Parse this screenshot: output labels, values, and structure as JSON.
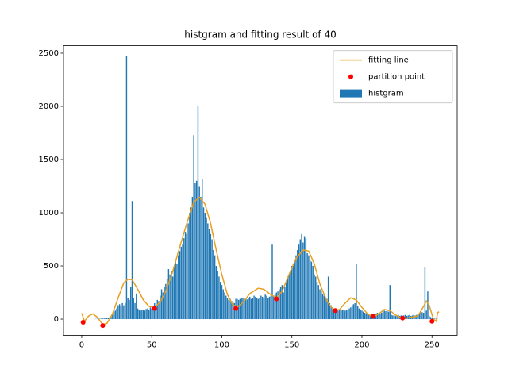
{
  "chart_data": {
    "type": "combo",
    "title": "histgram and fitting result of 40",
    "xlim": [
      -13,
      268
    ],
    "ylim": [
      -152,
      2570
    ],
    "xticks": [
      0,
      50,
      100,
      150,
      200,
      250
    ],
    "yticks": [
      0,
      500,
      1000,
      1500,
      2000,
      2500
    ],
    "legend": "upper right",
    "series": [
      {
        "name": "fitting line",
        "type": "line",
        "color": "#e69f1f",
        "x": [
          0,
          2,
          5,
          8,
          11,
          15,
          18,
          22,
          26,
          30,
          33,
          36,
          40,
          44,
          48,
          52,
          56,
          60,
          65,
          70,
          75,
          80,
          84,
          88,
          92,
          96,
          100,
          104,
          108,
          112,
          116,
          120,
          126,
          130,
          135,
          139,
          143,
          148,
          153,
          158,
          162,
          166,
          170,
          175,
          180,
          184,
          188,
          192,
          196,
          200,
          204,
          208,
          212,
          216,
          220,
          224,
          228,
          232,
          236,
          240,
          244,
          246,
          248,
          251,
          253,
          254,
          255
        ],
        "values": [
          55,
          -20,
          30,
          50,
          20,
          -50,
          -40,
          50,
          200,
          340,
          375,
          370,
          280,
          180,
          120,
          110,
          160,
          260,
          450,
          680,
          900,
          1100,
          1145,
          1080,
          900,
          650,
          420,
          230,
          130,
          120,
          170,
          240,
          290,
          280,
          230,
          200,
          260,
          420,
          570,
          650,
          640,
          520,
          330,
          170,
          80,
          90,
          150,
          200,
          180,
          110,
          50,
          20,
          50,
          90,
          80,
          40,
          10,
          10,
          20,
          30,
          120,
          170,
          130,
          0,
          -20,
          60,
          70
        ]
      },
      {
        "name": "partition point",
        "type": "scatter",
        "color": "#ff0000",
        "x": [
          1,
          15,
          52,
          110,
          139,
          181,
          208,
          229,
          250
        ],
        "values": [
          -30,
          -60,
          100,
          100,
          190,
          80,
          25,
          10,
          -20
        ]
      },
      {
        "name": "histgram",
        "type": "bar",
        "color": "#1f77b4",
        "x": [
          0,
          1,
          2,
          3,
          4,
          5,
          6,
          7,
          8,
          9,
          10,
          11,
          12,
          13,
          14,
          15,
          16,
          17,
          18,
          19,
          20,
          21,
          22,
          23,
          24,
          25,
          26,
          27,
          28,
          29,
          30,
          31,
          32,
          33,
          34,
          35,
          36,
          37,
          38,
          39,
          40,
          41,
          42,
          43,
          44,
          45,
          46,
          47,
          48,
          49,
          50,
          51,
          52,
          53,
          54,
          55,
          56,
          57,
          58,
          59,
          60,
          61,
          62,
          63,
          64,
          65,
          66,
          67,
          68,
          69,
          70,
          71,
          72,
          73,
          74,
          75,
          76,
          77,
          78,
          79,
          80,
          81,
          82,
          83,
          84,
          85,
          86,
          87,
          88,
          89,
          90,
          91,
          92,
          93,
          94,
          95,
          96,
          97,
          98,
          99,
          100,
          101,
          102,
          103,
          104,
          105,
          106,
          107,
          108,
          109,
          110,
          111,
          112,
          113,
          114,
          115,
          116,
          117,
          118,
          119,
          120,
          121,
          122,
          123,
          124,
          125,
          126,
          127,
          128,
          129,
          130,
          131,
          132,
          133,
          134,
          135,
          136,
          137,
          138,
          139,
          140,
          141,
          142,
          143,
          144,
          145,
          146,
          147,
          148,
          149,
          150,
          151,
          152,
          153,
          154,
          155,
          156,
          157,
          158,
          159,
          160,
          161,
          162,
          163,
          164,
          165,
          166,
          167,
          168,
          169,
          170,
          171,
          172,
          173,
          174,
          175,
          176,
          177,
          178,
          179,
          180,
          181,
          182,
          183,
          184,
          185,
          186,
          187,
          188,
          189,
          190,
          191,
          192,
          193,
          194,
          195,
          196,
          197,
          198,
          199,
          200,
          201,
          202,
          203,
          204,
          205,
          206,
          207,
          208,
          209,
          210,
          211,
          212,
          213,
          214,
          215,
          216,
          217,
          218,
          219,
          220,
          221,
          222,
          223,
          224,
          225,
          226,
          227,
          228,
          229,
          230,
          231,
          232,
          233,
          234,
          235,
          236,
          237,
          238,
          239,
          240,
          241,
          242,
          243,
          244,
          245,
          246,
          247,
          248,
          249,
          250,
          251,
          252,
          253,
          254,
          255
        ],
        "values": [
          0,
          0,
          0,
          0,
          0,
          0,
          0,
          0,
          0,
          0,
          2,
          3,
          3,
          4,
          5,
          5,
          6,
          8,
          10,
          12,
          20,
          30,
          50,
          70,
          80,
          100,
          130,
          140,
          120,
          150,
          130,
          150,
          2470,
          200,
          180,
          300,
          1110,
          200,
          150,
          240,
          100,
          90,
          80,
          85,
          90,
          80,
          95,
          100,
          90,
          110,
          100,
          120,
          150,
          130,
          180,
          170,
          220,
          280,
          250,
          300,
          330,
          380,
          470,
          420,
          450,
          400,
          500,
          560,
          520,
          600,
          640,
          680,
          700,
          760,
          820,
          800,
          900,
          1000,
          1050,
          1150,
          1730,
          1280,
          1300,
          2000,
          1250,
          1150,
          1320,
          1050,
          1000,
          950,
          900,
          850,
          800,
          750,
          650,
          600,
          500,
          450,
          400,
          350,
          320,
          280,
          250,
          220,
          200,
          180,
          190,
          170,
          160,
          150,
          190,
          190,
          180,
          190,
          200,
          195,
          190,
          200,
          185,
          200,
          210,
          190,
          200,
          220,
          210,
          200,
          190,
          200,
          220,
          210,
          200,
          230,
          220,
          200,
          210,
          220,
          700,
          220,
          230,
          250,
          260,
          280,
          300,
          320,
          250,
          300,
          350,
          380,
          420,
          450,
          500,
          520,
          560,
          600,
          650,
          700,
          750,
          800,
          720,
          780,
          760,
          620,
          600,
          560,
          540,
          500,
          420,
          400,
          350,
          320,
          280,
          260,
          240,
          220,
          200,
          190,
          400,
          150,
          130,
          110,
          100,
          90,
          85,
          80,
          90,
          80,
          85,
          90,
          80,
          85,
          90,
          100,
          110,
          130,
          140,
          150,
          520,
          120,
          100,
          90,
          80,
          70,
          60,
          55,
          50,
          45,
          40,
          45,
          50,
          40,
          50,
          60,
          55,
          50,
          60,
          70,
          80,
          75,
          80,
          70,
          320,
          40,
          35,
          40,
          30,
          35,
          40,
          30,
          35,
          30,
          35,
          40,
          30,
          35,
          40,
          30,
          35,
          40,
          35,
          40,
          45,
          55,
          60,
          65,
          60,
          490,
          80,
          260,
          30,
          20,
          15,
          10,
          5,
          3,
          2,
          0
        ]
      }
    ]
  }
}
